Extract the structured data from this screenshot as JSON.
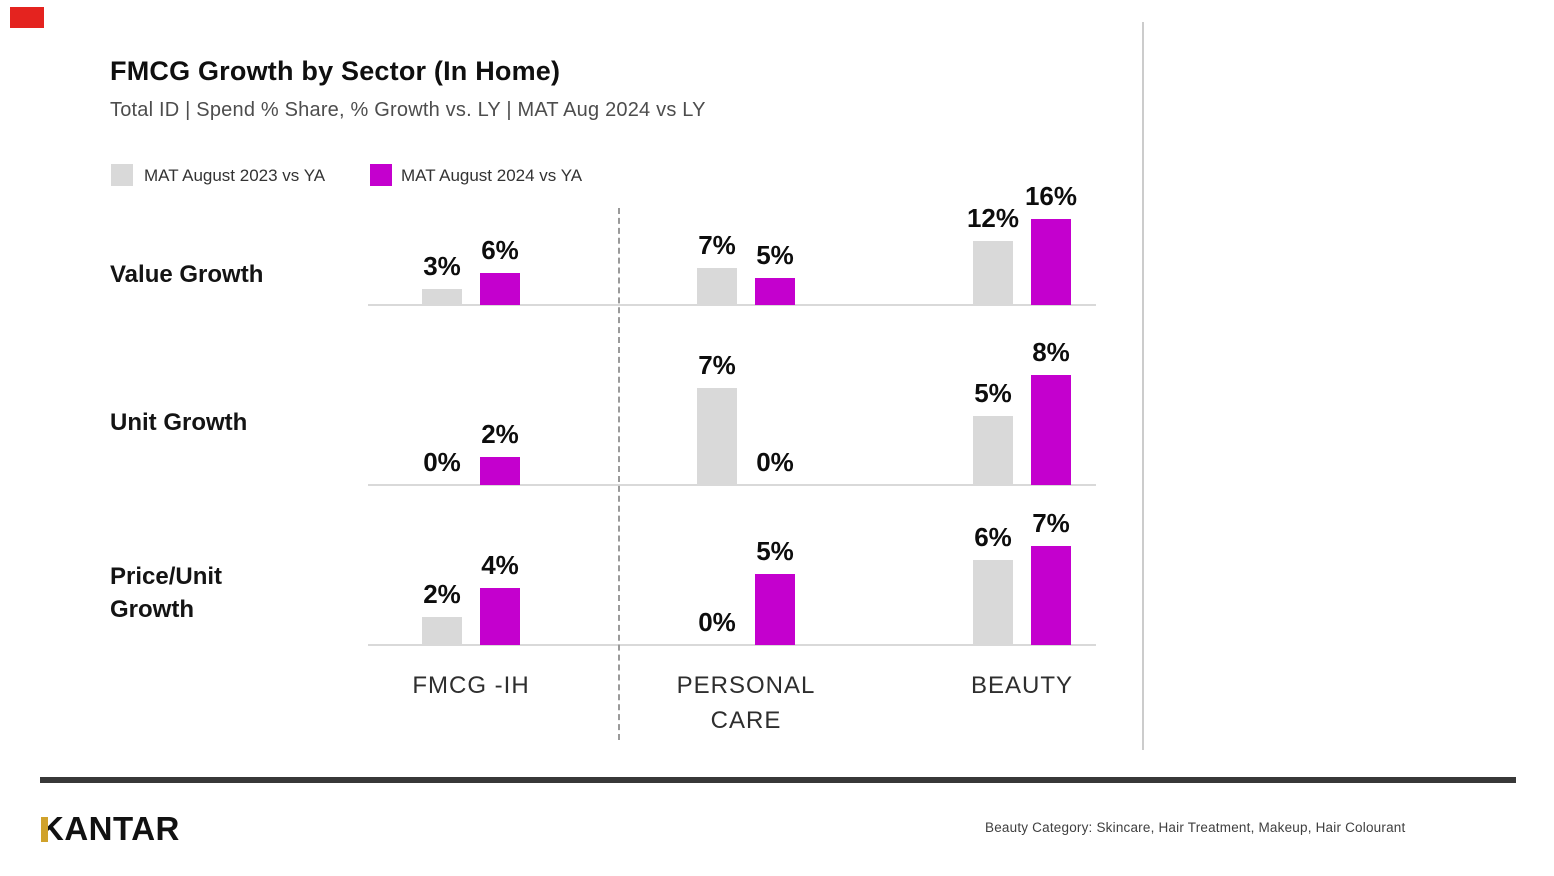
{
  "page": {
    "red_mark_color": "#E4231F",
    "divider_color": "#9a9a9a",
    "baseline_color": "#d9d9d9"
  },
  "header": {
    "title": "FMCG Growth by Sector (In Home)",
    "subtitle": "Total ID | Spend % Share, % Growth vs. LY | MAT Aug 2024 vs LY"
  },
  "legend": [
    {
      "label": "MAT August 2023 vs YA",
      "color": "#D9D9D9"
    },
    {
      "label": "MAT August 2024 vs YA",
      "color": "#C400CE"
    }
  ],
  "chart_data": {
    "type": "bar",
    "title": "FMCG Growth by Sector (In Home)",
    "subtitle": "Total ID | Spend % Share, % Growth vs. LY | MAT Aug 2024 vs LY",
    "unit": "%",
    "legend_position": "top-left",
    "grid": false,
    "series_colors": [
      "#D9D9D9",
      "#C400CE"
    ],
    "categories": [
      "FMCG -IH",
      "PERSONAL CARE",
      "BEAUTY"
    ],
    "row_groups": [
      {
        "label": "Value Growth",
        "series": [
          {
            "name": "MAT August 2023 vs YA",
            "values": [
              3,
              7,
              12
            ]
          },
          {
            "name": "MAT August 2024 vs YA",
            "values": [
              6,
              5,
              16
            ]
          }
        ]
      },
      {
        "label": "Unit Growth",
        "series": [
          {
            "name": "MAT August 2023 vs YA",
            "values": [
              0,
              7,
              5
            ]
          },
          {
            "name": "MAT August 2024 vs YA",
            "values": [
              2,
              0,
              8
            ]
          }
        ]
      },
      {
        "label": "Price/Unit Growth",
        "series": [
          {
            "name": "MAT August 2023 vs YA",
            "values": [
              2,
              0,
              6
            ]
          },
          {
            "name": "MAT August 2024 vs YA",
            "values": [
              4,
              5,
              7
            ]
          }
        ]
      }
    ]
  },
  "footer": {
    "logo_text": "KANTAR",
    "logo_accent_color": "#D0A22B",
    "note": "Beauty Category: Skincare, Hair Treatment, Makeup, Hair Colourant"
  }
}
